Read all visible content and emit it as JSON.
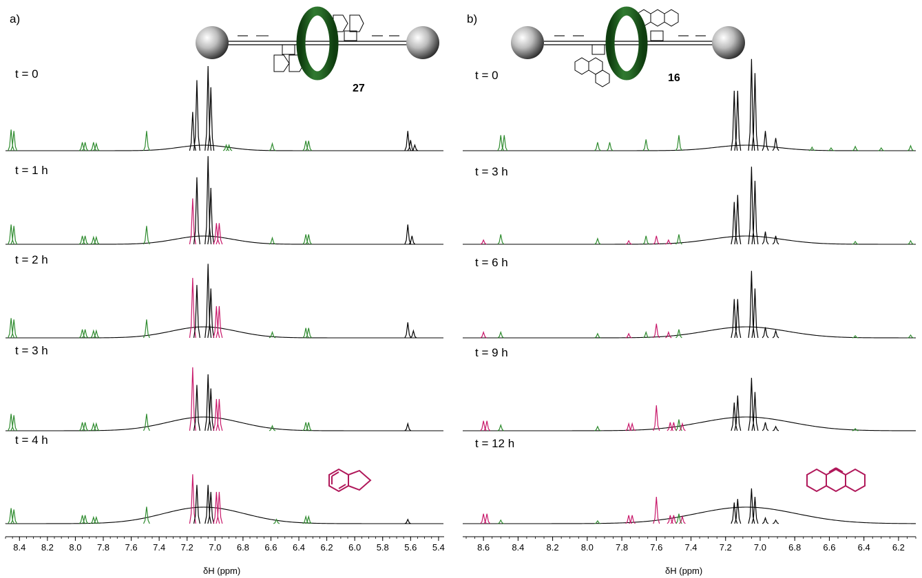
{
  "panels": [
    {
      "id": "a",
      "label": "a)",
      "compound": "27",
      "axis_label": "δH (ppm)",
      "ticks": [
        "8.4",
        "8.2",
        "8.0",
        "7.8",
        "7.6",
        "7.4",
        "7.2",
        "7.0",
        "6.8",
        "6.6",
        "6.4",
        "6.2",
        "6.0",
        "5.8",
        "5.6",
        "5.4"
      ],
      "time_labels": [
        "t = 0",
        "t = 1 h",
        "t = 2 h",
        "t = 3 h",
        "t = 4 h"
      ]
    },
    {
      "id": "b",
      "label": "b)",
      "compound": "16",
      "axis_label": "δH (ppm)",
      "ticks": [
        "8.6",
        "8.4",
        "8.2",
        "8.0",
        "7.8",
        "7.6",
        "7.4",
        "7.2",
        "7.0",
        "6.8",
        "6.6",
        "6.4",
        "6.2"
      ],
      "time_labels": [
        "t = 0",
        "t = 3 h",
        "t = 6 h",
        "t = 9 h",
        "t = 12 h"
      ]
    }
  ],
  "chart_data": [
    {
      "type": "line",
      "panel": "a",
      "xlabel": "δH (ppm)",
      "xlim": [
        8.5,
        5.36
      ],
      "x_reversed": true,
      "series": [
        {
          "name": "t = 0",
          "peaks": [
            [
              8.46,
              0.3
            ],
            [
              8.44,
              0.28
            ],
            [
              7.95,
              0.12
            ],
            [
              7.93,
              0.12
            ],
            [
              7.87,
              0.12
            ],
            [
              7.85,
              0.1
            ],
            [
              7.49,
              0.28
            ],
            [
              7.16,
              0.55
            ],
            [
              7.13,
              1.0
            ],
            [
              7.05,
              1.2
            ],
            [
              7.03,
              0.9
            ],
            [
              6.92,
              0.08
            ],
            [
              6.9,
              0.08
            ],
            [
              6.59,
              0.1
            ],
            [
              6.35,
              0.14
            ],
            [
              6.33,
              0.14
            ],
            [
              5.62,
              0.28
            ],
            [
              5.6,
              0.15
            ],
            [
              5.57,
              0.08
            ]
          ]
        },
        {
          "name": "t = 1 h",
          "peaks": [
            [
              8.46,
              0.28
            ],
            [
              8.44,
              0.26
            ],
            [
              7.95,
              0.12
            ],
            [
              7.93,
              0.12
            ],
            [
              7.87,
              0.1
            ],
            [
              7.85,
              0.1
            ],
            [
              7.49,
              0.26
            ],
            [
              7.16,
              0.65
            ],
            [
              7.13,
              0.95
            ],
            [
              7.05,
              1.25
            ],
            [
              7.03,
              0.8
            ],
            [
              6.99,
              0.3
            ],
            [
              6.97,
              0.3
            ],
            [
              6.59,
              0.09
            ],
            [
              6.35,
              0.14
            ],
            [
              6.33,
              0.14
            ],
            [
              5.62,
              0.28
            ],
            [
              5.59,
              0.12
            ]
          ]
        },
        {
          "name": "t = 2 h",
          "peaks": [
            [
              8.46,
              0.28
            ],
            [
              8.44,
              0.26
            ],
            [
              7.95,
              0.12
            ],
            [
              7.93,
              0.12
            ],
            [
              7.87,
              0.1
            ],
            [
              7.85,
              0.1
            ],
            [
              7.49,
              0.26
            ],
            [
              7.16,
              0.85
            ],
            [
              7.13,
              0.75
            ],
            [
              7.05,
              1.05
            ],
            [
              7.03,
              0.7
            ],
            [
              6.99,
              0.45
            ],
            [
              6.97,
              0.45
            ],
            [
              6.59,
              0.08
            ],
            [
              6.35,
              0.14
            ],
            [
              6.33,
              0.14
            ],
            [
              5.62,
              0.22
            ],
            [
              5.58,
              0.1
            ]
          ]
        },
        {
          "name": "t = 3 h",
          "peaks": [
            [
              8.46,
              0.24
            ],
            [
              8.44,
              0.22
            ],
            [
              7.95,
              0.12
            ],
            [
              7.93,
              0.12
            ],
            [
              7.87,
              0.1
            ],
            [
              7.85,
              0.1
            ],
            [
              7.49,
              0.24
            ],
            [
              7.16,
              0.9
            ],
            [
              7.13,
              0.65
            ],
            [
              7.05,
              0.8
            ],
            [
              7.03,
              0.6
            ],
            [
              6.99,
              0.45
            ],
            [
              6.97,
              0.45
            ],
            [
              6.59,
              0.07
            ],
            [
              6.35,
              0.12
            ],
            [
              6.33,
              0.12
            ],
            [
              5.62,
              0.1
            ]
          ]
        },
        {
          "name": "t = 4 h",
          "peaks": [
            [
              8.46,
              0.22
            ],
            [
              8.44,
              0.2
            ],
            [
              7.95,
              0.12
            ],
            [
              7.93,
              0.12
            ],
            [
              7.87,
              0.09
            ],
            [
              7.85,
              0.09
            ],
            [
              7.49,
              0.24
            ],
            [
              7.16,
              0.7
            ],
            [
              7.13,
              0.55
            ],
            [
              7.05,
              0.55
            ],
            [
              7.03,
              0.45
            ],
            [
              6.99,
              0.45
            ],
            [
              6.97,
              0.45
            ],
            [
              6.56,
              0.06
            ],
            [
              6.35,
              0.1
            ],
            [
              6.33,
              0.1
            ],
            [
              5.62,
              0.06
            ]
          ]
        }
      ]
    },
    {
      "type": "line",
      "panel": "b",
      "xlabel": "δH (ppm)",
      "xlim": [
        8.72,
        6.1
      ],
      "x_reversed": true,
      "series": [
        {
          "name": "t = 0",
          "peaks": [
            [
              8.5,
              0.22
            ],
            [
              8.48,
              0.22
            ],
            [
              7.94,
              0.12
            ],
            [
              7.87,
              0.12
            ],
            [
              7.66,
              0.16
            ],
            [
              7.47,
              0.22
            ],
            [
              7.15,
              0.85
            ],
            [
              7.13,
              0.85
            ],
            [
              7.05,
              1.3
            ],
            [
              7.03,
              1.1
            ],
            [
              6.97,
              0.28
            ],
            [
              6.91,
              0.18
            ],
            [
              6.7,
              0.05
            ],
            [
              6.59,
              0.04
            ],
            [
              6.45,
              0.06
            ],
            [
              6.3,
              0.04
            ],
            [
              6.13,
              0.07
            ]
          ]
        },
        {
          "name": "t = 3 h",
          "peaks": [
            [
              8.6,
              0.06
            ],
            [
              8.5,
              0.14
            ],
            [
              7.94,
              0.08
            ],
            [
              7.76,
              0.05
            ],
            [
              7.66,
              0.12
            ],
            [
              7.6,
              0.12
            ],
            [
              7.53,
              0.06
            ],
            [
              7.47,
              0.14
            ],
            [
              7.15,
              0.6
            ],
            [
              7.13,
              0.7
            ],
            [
              7.05,
              1.1
            ],
            [
              7.03,
              0.9
            ],
            [
              6.97,
              0.18
            ],
            [
              6.91,
              0.12
            ],
            [
              6.45,
              0.04
            ],
            [
              6.13,
              0.05
            ]
          ]
        },
        {
          "name": "t = 6 h",
          "peaks": [
            [
              8.6,
              0.08
            ],
            [
              8.5,
              0.08
            ],
            [
              7.94,
              0.06
            ],
            [
              7.76,
              0.06
            ],
            [
              7.66,
              0.08
            ],
            [
              7.6,
              0.2
            ],
            [
              7.53,
              0.08
            ],
            [
              7.47,
              0.12
            ],
            [
              7.15,
              0.55
            ],
            [
              7.13,
              0.55
            ],
            [
              7.05,
              0.95
            ],
            [
              7.03,
              0.7
            ],
            [
              6.97,
              0.15
            ],
            [
              6.91,
              0.1
            ],
            [
              6.45,
              0.03
            ],
            [
              6.13,
              0.04
            ]
          ]
        },
        {
          "name": "t = 9 h",
          "peaks": [
            [
              8.6,
              0.14
            ],
            [
              8.58,
              0.14
            ],
            [
              8.5,
              0.08
            ],
            [
              7.94,
              0.06
            ],
            [
              7.76,
              0.1
            ],
            [
              7.74,
              0.1
            ],
            [
              7.6,
              0.36
            ],
            [
              7.52,
              0.12
            ],
            [
              7.5,
              0.12
            ],
            [
              7.47,
              0.16
            ],
            [
              7.45,
              0.1
            ],
            [
              7.15,
              0.4
            ],
            [
              7.13,
              0.5
            ],
            [
              7.05,
              0.75
            ],
            [
              7.03,
              0.55
            ],
            [
              6.97,
              0.12
            ],
            [
              6.91,
              0.06
            ],
            [
              6.45,
              0.03
            ]
          ]
        },
        {
          "name": "t = 12 h",
          "peaks": [
            [
              8.6,
              0.14
            ],
            [
              8.58,
              0.14
            ],
            [
              8.5,
              0.05
            ],
            [
              7.94,
              0.04
            ],
            [
              7.76,
              0.12
            ],
            [
              7.74,
              0.12
            ],
            [
              7.6,
              0.38
            ],
            [
              7.52,
              0.12
            ],
            [
              7.5,
              0.12
            ],
            [
              7.47,
              0.14
            ],
            [
              7.45,
              0.1
            ],
            [
              7.15,
              0.3
            ],
            [
              7.13,
              0.35
            ],
            [
              7.05,
              0.5
            ],
            [
              7.03,
              0.38
            ],
            [
              6.97,
              0.08
            ],
            [
              6.91,
              0.05
            ]
          ]
        }
      ]
    }
  ]
}
